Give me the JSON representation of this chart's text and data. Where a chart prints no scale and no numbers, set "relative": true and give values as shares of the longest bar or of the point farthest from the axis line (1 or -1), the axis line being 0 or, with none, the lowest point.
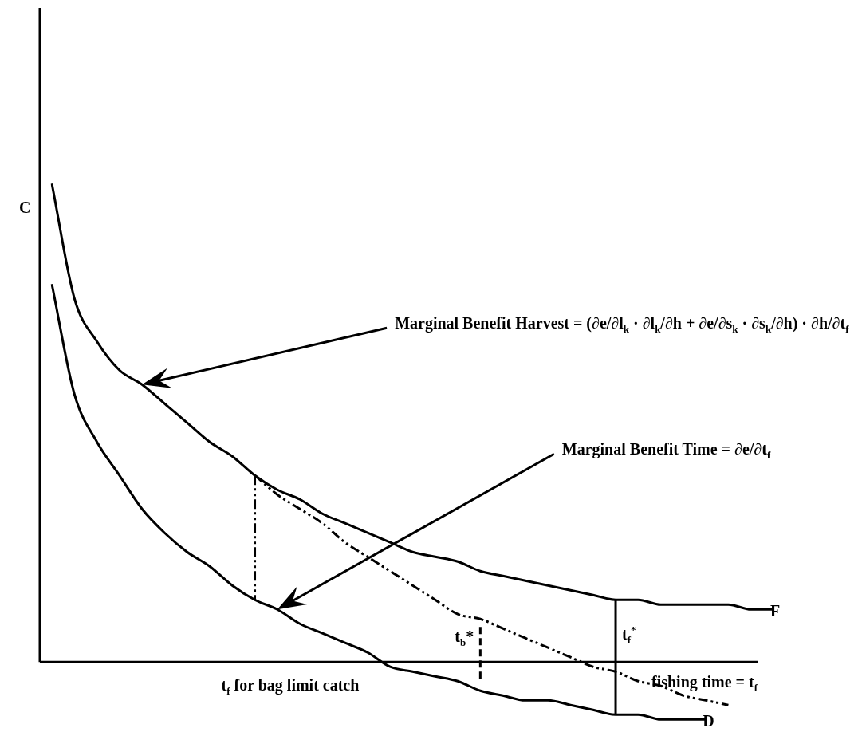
{
  "chart_data": {
    "type": "line",
    "relative": true,
    "xlabel": "fishing time = t$_{f}$",
    "ylabel": "C",
    "legend": false,
    "categories": [
      null,
      null,
      null,
      null,
      null,
      null,
      null,
      null,
      null,
      null,
      null,
      null,
      null,
      null,
      null,
      null,
      null,
      null,
      null,
      null,
      null,
      null,
      null,
      null,
      null,
      null,
      null,
      null,
      null,
      null,
      null,
      null,
      null
    ],
    "series": [
      {
        "name": "F",
        "color": "#000000",
        "line_style": "solid",
        "values": [
          1.0,
          0.76,
          0.67,
          0.61,
          0.58,
          0.54,
          0.5,
          0.46,
          0.43,
          0.39,
          0.36,
          0.34,
          0.31,
          0.29,
          0.27,
          0.25,
          0.23,
          0.22,
          0.21,
          0.19,
          0.18,
          0.17,
          0.16,
          0.15,
          0.14,
          0.13,
          0.13,
          0.12,
          0.12,
          0.12,
          0.12,
          0.11,
          0.11
        ]
      },
      {
        "name": "D",
        "color": "#000000",
        "line_style": "solid",
        "values": [
          0.79,
          0.56,
          0.46,
          0.39,
          0.32,
          0.27,
          0.23,
          0.2,
          0.16,
          0.13,
          0.11,
          0.08,
          0.06,
          0.04,
          0.02,
          -0.01,
          -0.02,
          -0.03,
          -0.04,
          -0.06,
          -0.07,
          -0.08,
          -0.08,
          -0.09,
          -0.1,
          -0.11,
          -0.11,
          -0.12,
          -0.12,
          -0.12,
          null,
          null,
          null
        ]
      },
      {
        "color": "#000000",
        "line_style": "dashed",
        "values": [
          null,
          null,
          null,
          null,
          null,
          null,
          null,
          null,
          null,
          0.39,
          0.35,
          0.32,
          0.29,
          0.25,
          0.22,
          0.19,
          0.16,
          0.13,
          0.1,
          0.09,
          0.07,
          0.05,
          0.03,
          0.01,
          -0.01,
          -0.02,
          -0.04,
          -0.05,
          -0.07,
          -0.08,
          -0.09,
          null,
          null
        ]
      }
    ],
    "annotations": [
      "Marginal Benefit Harvest = (∂e/∂l$_{k}$ · ∂l$_{k}$/∂h + ∂e/∂s$_{k}$ · ∂s$_{k}$/∂h) · ∂h/∂t$_{f}$",
      "Marginal Benefit Time = ∂e/∂t$_{f}$",
      "t$_{f}$ for bag limit catch",
      "t$_{b}$*",
      "t$_{f}$$^{*}$"
    ]
  }
}
